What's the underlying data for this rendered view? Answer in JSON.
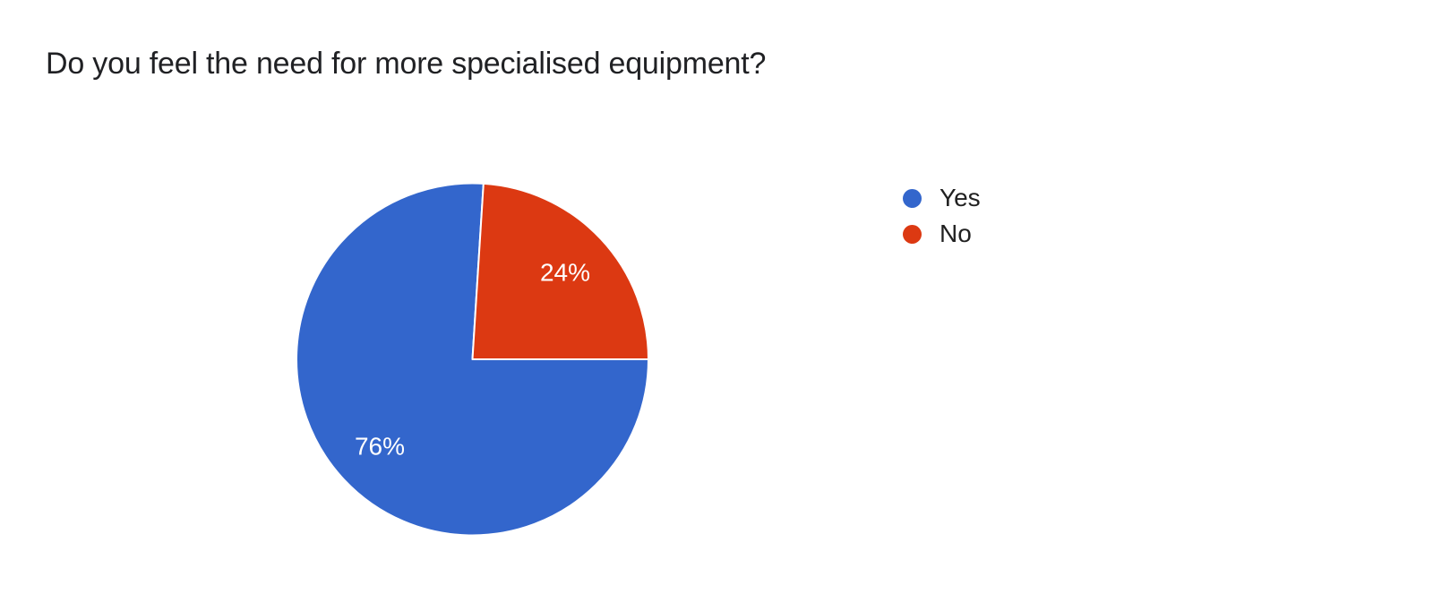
{
  "chart_data": {
    "type": "pie",
    "title": "Do you feel the need for more specialised equipment?",
    "categories": [
      "Yes",
      "No"
    ],
    "values": [
      76,
      24
    ],
    "unit": "%",
    "legend_position": "right",
    "start_angle_deg": 90,
    "label_color": "#ffffff",
    "slice_border_color": "#ffffff",
    "title_color": "#202124",
    "background_color": "#ffffff",
    "slices": [
      {
        "label": "Yes",
        "value": 76,
        "display": "76%",
        "color": "#3366CC"
      },
      {
        "label": "No",
        "value": 24,
        "display": "24%",
        "color": "#DC3912"
      }
    ]
  }
}
